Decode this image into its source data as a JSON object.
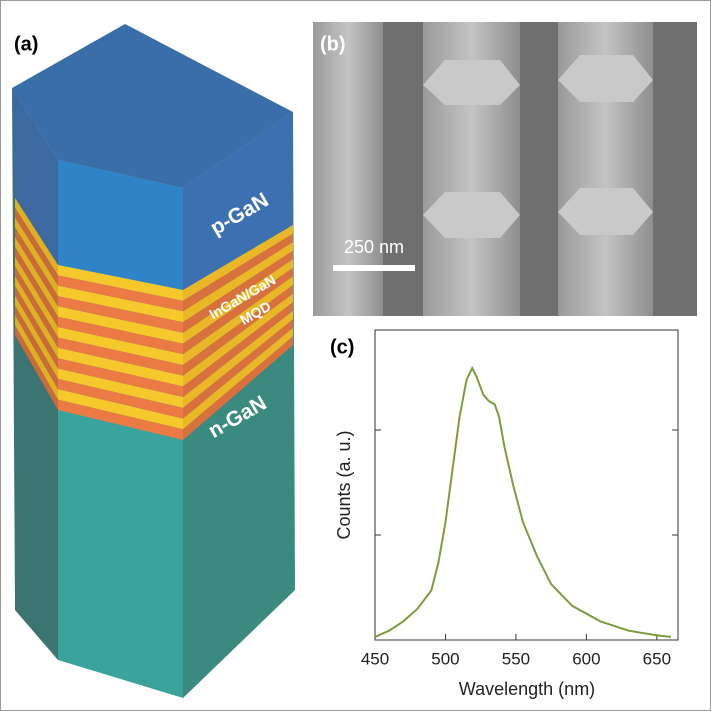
{
  "panels": {
    "a": {
      "label": "(a)",
      "layers": [
        "p-GaN",
        "InGaN/GaN",
        "MQD",
        "n-GaN"
      ]
    },
    "b": {
      "label": "(b)",
      "scale_bar": "250 nm"
    }
  },
  "chart_data": {
    "type": "line",
    "label": "(c)",
    "x_label": "Wavelength (nm)",
    "y_label": "Counts (a. u.)",
    "x": [
      450,
      460,
      470,
      480,
      490,
      495,
      500,
      505,
      510,
      515,
      519,
      522,
      527,
      531,
      535,
      538,
      542,
      548,
      555,
      565,
      575,
      590,
      610,
      630,
      650,
      660
    ],
    "series": [
      {
        "color": "#7f9c3c",
        "values": [
          0.01,
          0.03,
          0.06,
          0.1,
          0.16,
          0.25,
          0.38,
          0.55,
          0.72,
          0.84,
          0.877,
          0.85,
          0.79,
          0.77,
          0.76,
          0.72,
          0.62,
          0.5,
          0.38,
          0.27,
          0.18,
          0.11,
          0.06,
          0.03,
          0.015,
          0.01
        ]
      }
    ],
    "xlim": [
      450,
      665
    ],
    "ylim": [
      0,
      1
    ],
    "xticks": [
      450,
      500,
      550,
      600,
      650
    ]
  }
}
